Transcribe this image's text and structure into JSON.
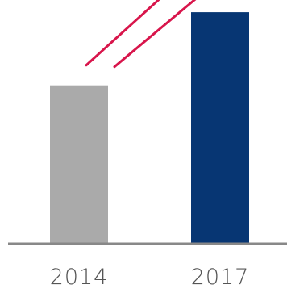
{
  "chart_data": {
    "type": "bar",
    "categories": [
      "2014",
      "2017"
    ],
    "values": [
      65,
      95
    ],
    "ylim": [
      0,
      100
    ],
    "grid": false,
    "legend": "none",
    "colors": {
      "bars": [
        "#aaaaaa",
        "#073673"
      ],
      "baseline": "#888888",
      "trend_arrow": "#d8154b"
    }
  }
}
